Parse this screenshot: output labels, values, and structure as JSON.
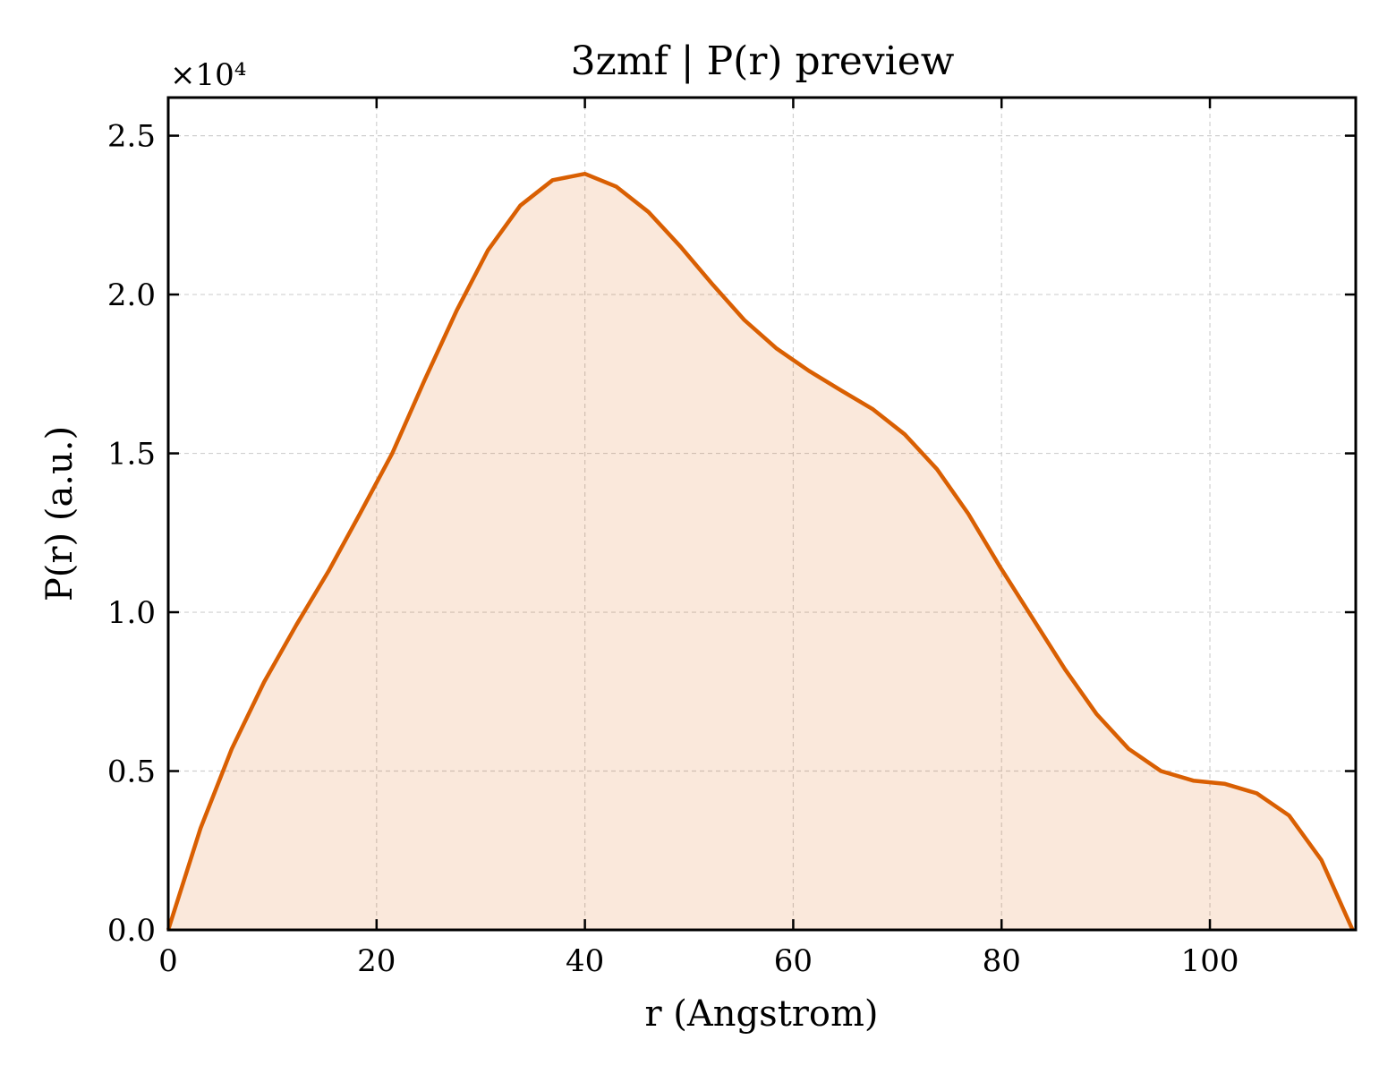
{
  "chart_data": {
    "type": "area",
    "title": "3zmf | P(r) preview",
    "xlabel": "r (Angstrom)",
    "ylabel": "P(r) (a.u.)",
    "y_multiplier": "×10⁴",
    "xlim": [
      0,
      114
    ],
    "ylim": [
      0,
      2.62
    ],
    "y_units": "x10^4",
    "xticks": [
      0,
      20,
      40,
      60,
      80,
      100
    ],
    "xtick_labels": [
      "0",
      "20",
      "40",
      "60",
      "80",
      "100"
    ],
    "yticks": [
      0,
      0.5,
      1.0,
      1.5,
      2.0,
      2.5
    ],
    "ytick_labels": [
      "0.0",
      "0.5",
      "1.0",
      "1.5",
      "2.0",
      "2.5"
    ],
    "grid": true,
    "legend": "none",
    "colors": {
      "line": "#d95f02",
      "fill": "#d95f02",
      "fill_opacity": 0.14
    },
    "series": [
      {
        "x": [
          0,
          3.1,
          6.1,
          9.2,
          12.3,
          15.4,
          18.4,
          21.5,
          24.6,
          27.7,
          30.7,
          33.8,
          36.9,
          40.0,
          43.0,
          46.1,
          49.2,
          52.3,
          55.3,
          58.4,
          61.5,
          64.5,
          67.6,
          70.7,
          73.8,
          76.8,
          79.9,
          83.0,
          86.1,
          89.1,
          92.2,
          95.3,
          98.4,
          101.4,
          104.5,
          107.6,
          110.7,
          113.7
        ],
        "y": [
          0.0,
          0.32,
          0.57,
          0.78,
          0.96,
          1.13,
          1.31,
          1.5,
          1.73,
          1.95,
          2.14,
          2.28,
          2.36,
          2.38,
          2.34,
          2.26,
          2.15,
          2.03,
          1.92,
          1.83,
          1.76,
          1.7,
          1.64,
          1.56,
          1.45,
          1.31,
          1.14,
          0.98,
          0.82,
          0.68,
          0.57,
          0.5,
          0.47,
          0.46,
          0.43,
          0.36,
          0.22,
          0.0
        ]
      }
    ]
  }
}
